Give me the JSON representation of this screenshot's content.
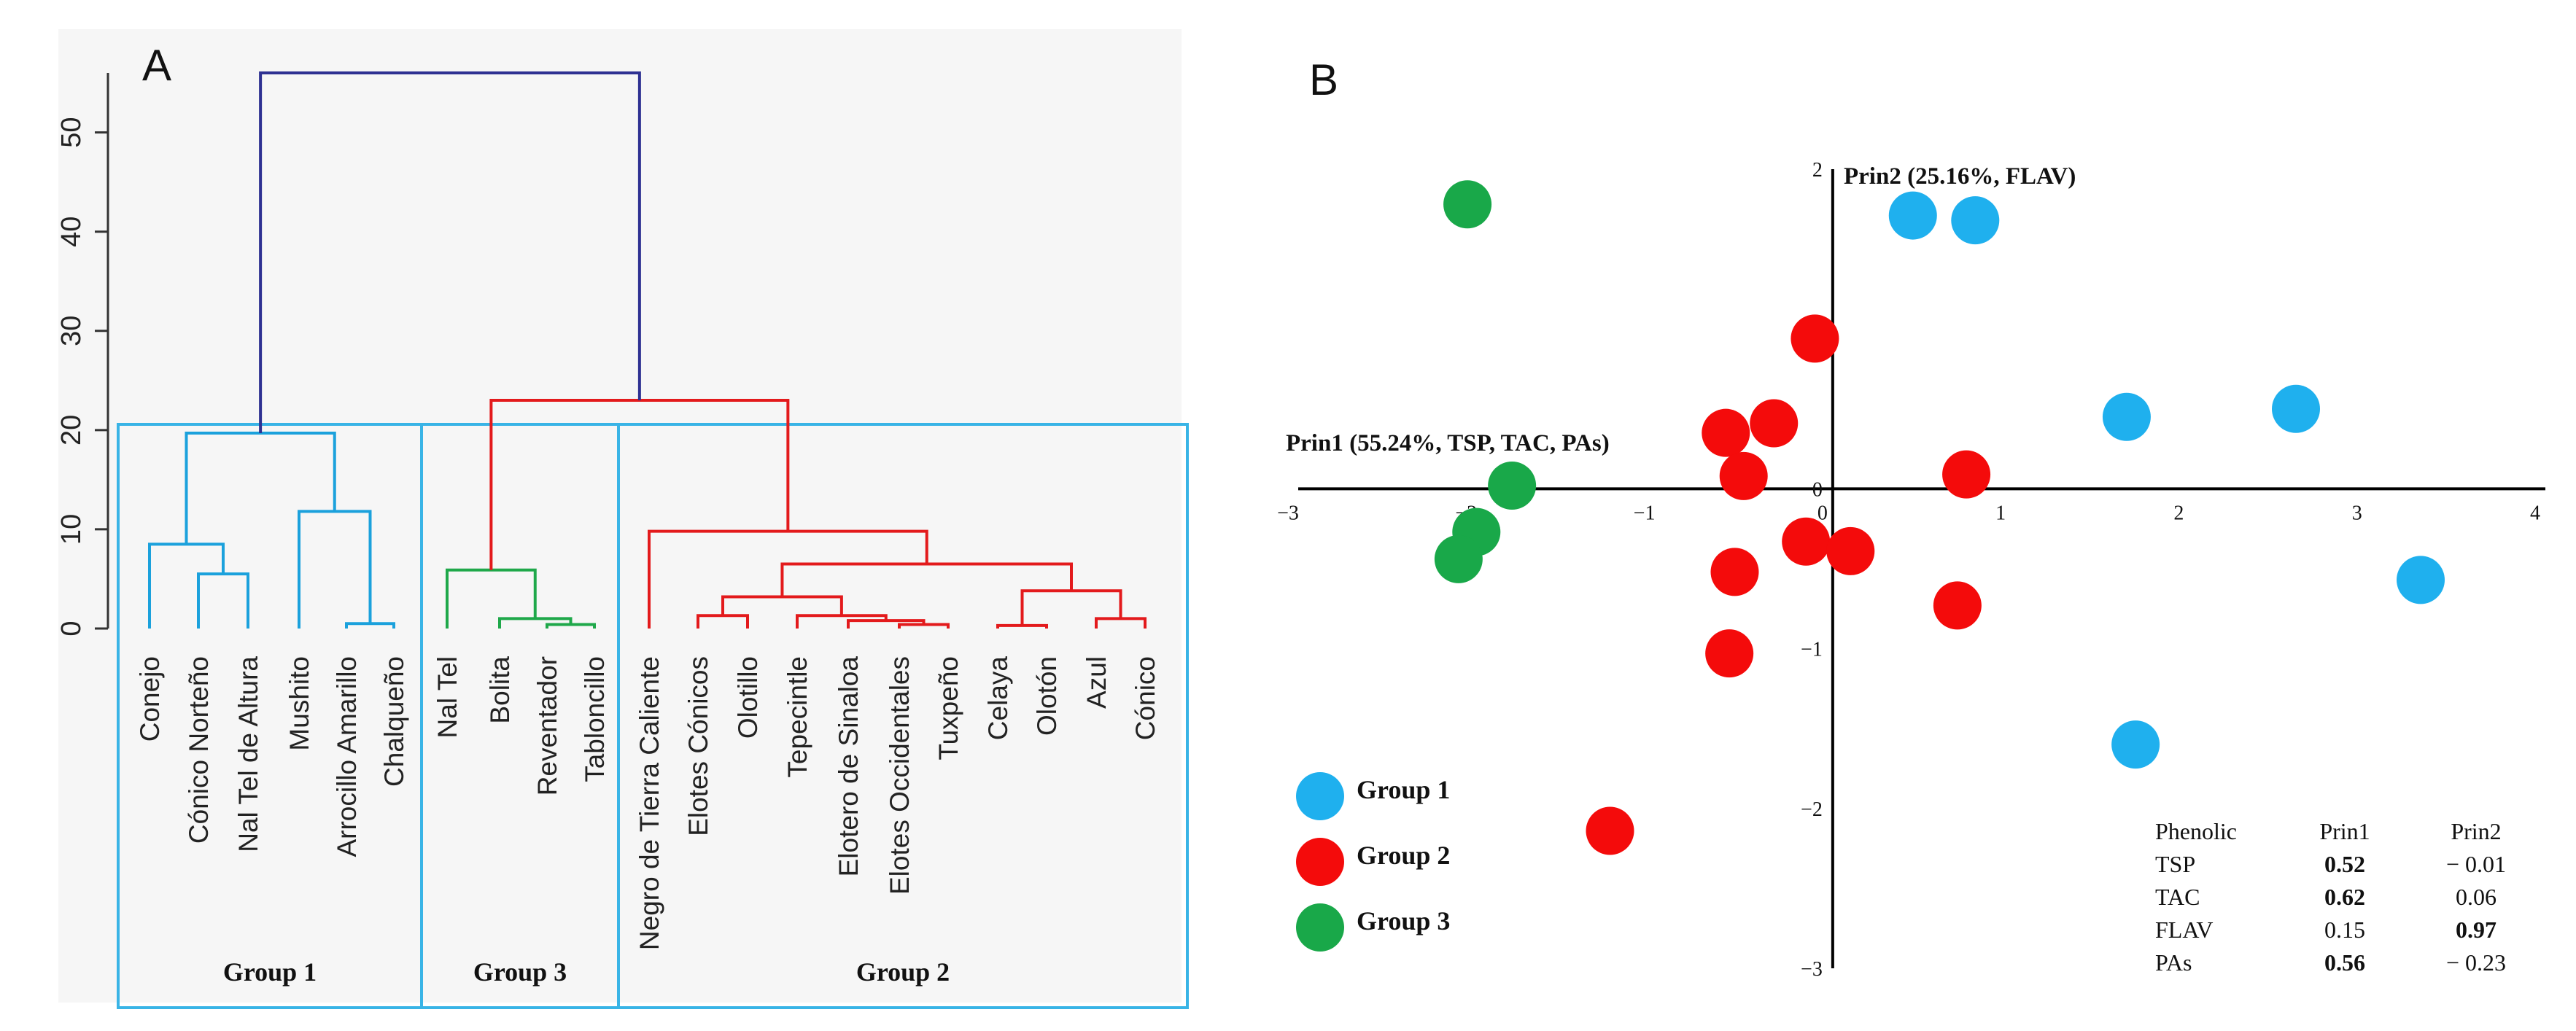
{
  "panel_labels": {
    "a": "A",
    "b": "B"
  },
  "colors": {
    "group1": "#1ba1dc",
    "group2": "#e31a1c",
    "group3": "#1fa84a",
    "group1_fill": "#1fb0ee",
    "group2_fill": "#f40b0b",
    "group3_fill": "#19a849",
    "root": "#2e3192",
    "frame": "#39b4e6"
  },
  "chart_data": [
    {
      "type": "dendrogram",
      "panel": "A",
      "ylim": [
        0,
        57
      ],
      "yticks": [
        0,
        10,
        20,
        30,
        40,
        50
      ],
      "ytick_labels": [
        "0",
        "10",
        "20",
        "30",
        "40",
        "50"
      ],
      "leaves": [
        "Conejo",
        "Cónico Norteño",
        "Nal Tel de Altura",
        "Mushito",
        "Arrocillo Amarillo",
        "Chalqueño",
        "Nal Tel",
        "Bolita",
        "Reventador",
        "Tabloncillo",
        "Negro de Tierra Caliente",
        "Elotes Cónicos",
        "Olotillo",
        "Tepecintle",
        "Elotero de Sinaloa",
        "Elotes Occidentales",
        "Tuxpeño",
        "Celaya",
        "Olotón",
        "Azul",
        "Cónico"
      ],
      "leaf_groups": [
        1,
        1,
        1,
        1,
        1,
        1,
        3,
        3,
        3,
        3,
        2,
        2,
        2,
        2,
        2,
        2,
        2,
        2,
        2,
        2,
        2
      ],
      "merges": [
        {
          "left": "L1",
          "right": "L2",
          "height": 5.5,
          "group": 1
        },
        {
          "left": "L0",
          "right": "N0",
          "height": 8.5,
          "group": 1
        },
        {
          "left": "L4",
          "right": "L5",
          "height": 0.5,
          "group": 1
        },
        {
          "left": "L3",
          "right": "N2",
          "height": 11.8,
          "group": 1
        },
        {
          "left": "N1",
          "right": "N3",
          "height": 19.7,
          "group": 1
        },
        {
          "left": "L8",
          "right": "L9",
          "height": 0.4,
          "group": 3
        },
        {
          "left": "L7",
          "right": "N5",
          "height": 1.0,
          "group": 3
        },
        {
          "left": "L6",
          "right": "N6",
          "height": 5.9,
          "group": 3
        },
        {
          "left": "L11",
          "right": "L12",
          "height": 1.3,
          "group": 2
        },
        {
          "left": "L15",
          "right": "L16",
          "height": 0.4,
          "group": 2
        },
        {
          "left": "L14",
          "right": "N9",
          "height": 0.8,
          "group": 2
        },
        {
          "left": "L13",
          "right": "N10",
          "height": 1.3,
          "group": 2
        },
        {
          "left": "N8",
          "right": "N11",
          "height": 3.2,
          "group": 2
        },
        {
          "left": "L17",
          "right": "L18",
          "height": 0.3,
          "group": 2
        },
        {
          "left": "L19",
          "right": "L20",
          "height": 1.0,
          "group": 2
        },
        {
          "left": "N13",
          "right": "N14",
          "height": 3.8,
          "group": 2
        },
        {
          "left": "N12",
          "right": "N15",
          "height": 6.5,
          "group": 2
        },
        {
          "left": "L10",
          "right": "N16",
          "height": 9.8,
          "group": 2
        },
        {
          "left": "N7",
          "right": "N17",
          "height": 23.0,
          "group": 2
        },
        {
          "left": "N4",
          "right": "N18",
          "height": 56.0,
          "group": 0
        }
      ],
      "group_boxes": [
        {
          "label": "Group 1",
          "first_leaf": 0,
          "last_leaf": 5
        },
        {
          "label": "Group 3",
          "first_leaf": 6,
          "last_leaf": 9
        },
        {
          "label": "Group 2",
          "first_leaf": 10,
          "last_leaf": 20
        }
      ]
    },
    {
      "type": "scatter",
      "panel": "B",
      "xlim": [
        -3,
        4
      ],
      "ylim": [
        -3,
        2
      ],
      "xticks": [
        -3,
        -2,
        -1,
        0,
        1,
        2,
        3,
        4
      ],
      "xtick_labels": [
        "−3",
        "−2",
        "−1",
        "0",
        "1",
        "2",
        "3",
        "4"
      ],
      "yticks": [
        2,
        1,
        0,
        -1,
        -2,
        -3
      ],
      "ytick_labels": [
        "2",
        "1",
        "0",
        "−1",
        "−2",
        "−3"
      ],
      "xlabel": "Prin1 (55.24%, TSP, TAC, PAs)",
      "ylabel": "Prin2 (25.16%, FLAV)",
      "legend": [
        {
          "label": "Group 1",
          "group": 1
        },
        {
          "label": "Group 2",
          "group": 2
        },
        {
          "label": "Group 3",
          "group": 3
        }
      ],
      "series": [
        {
          "name": "Group 1",
          "group": 1,
          "points": [
            [
              0.45,
              1.71
            ],
            [
              0.8,
              1.68
            ],
            [
              1.65,
              0.45
            ],
            [
              2.6,
              0.5
            ],
            [
              3.3,
              -0.57
            ],
            [
              1.7,
              -1.6
            ]
          ]
        },
        {
          "name": "Group 2",
          "group": 2,
          "points": [
            [
              -0.1,
              0.94
            ],
            [
              -0.33,
              0.41
            ],
            [
              -0.6,
              0.35
            ],
            [
              -0.5,
              0.08
            ],
            [
              0.75,
              0.09
            ],
            [
              -0.15,
              -0.33
            ],
            [
              0.1,
              -0.39
            ],
            [
              -0.55,
              -0.52
            ],
            [
              0.7,
              -0.73
            ],
            [
              -0.58,
              -1.03
            ],
            [
              -1.25,
              -2.14
            ]
          ]
        },
        {
          "name": "Group 3",
          "group": 3,
          "points": [
            [
              -2.05,
              1.78
            ],
            [
              -1.8,
              0.02
            ],
            [
              -2.0,
              -0.27
            ],
            [
              -2.1,
              -0.44
            ]
          ]
        }
      ]
    },
    {
      "type": "table",
      "panel": "B",
      "columns": [
        "Phenolic",
        "Prin1",
        "Prin2"
      ],
      "rows": [
        {
          "name": "TSP",
          "prin1": "0.52",
          "prin2": "− 0.01",
          "bold": "prin1"
        },
        {
          "name": "TAC",
          "prin1": "0.62",
          "prin2": "0.06",
          "bold": "prin1"
        },
        {
          "name": "FLAV",
          "prin1": "0.15",
          "prin2": "0.97",
          "bold": "prin2"
        },
        {
          "name": "PAs",
          "prin1": "0.56",
          "prin2": "− 0.23",
          "bold": "prin1"
        }
      ]
    }
  ]
}
